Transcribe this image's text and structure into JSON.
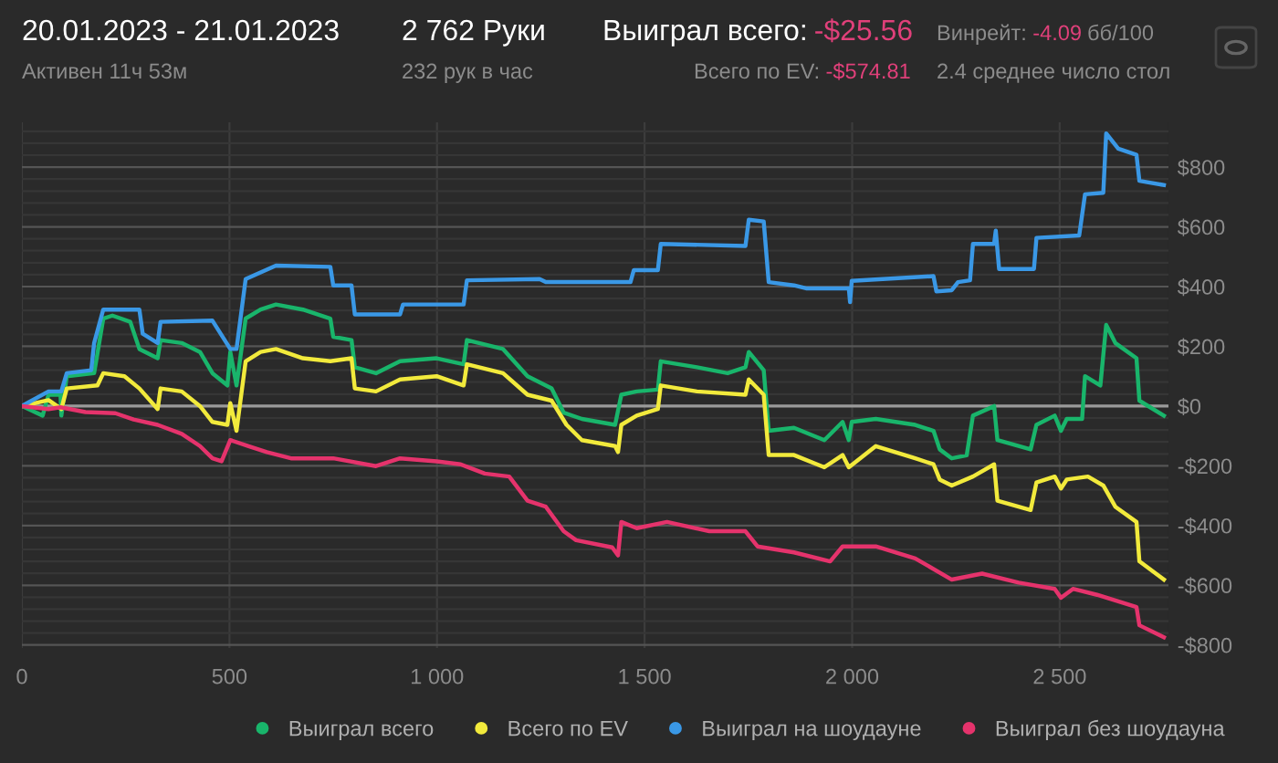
{
  "chart_data": {
    "type": "line",
    "annotations": [
      "20.01.2023 - 21.01.2023",
      "Активен 11ч 53м",
      "2 762 Руки",
      "232 рук в час",
      "Выиграл всего:",
      "-$25.56",
      "Всего по EV:",
      "-$574.81",
      "Винрейт:",
      "-4.09",
      "бб/100",
      "2.4 среднее число стол"
    ],
    "xlim": [
      0,
      2762
    ],
    "ylim": [
      -810,
      950
    ],
    "xticks": [
      0,
      500,
      {
        "value": 1000,
        "label": "1 000"
      },
      {
        "value": 1500,
        "label": "1 500"
      },
      {
        "value": 2000,
        "label": "2 000"
      },
      {
        "value": 2500,
        "label": "2 500"
      }
    ],
    "yticks": [
      {
        "value": -800,
        "label": "-$800"
      },
      {
        "value": -760,
        "label": null
      },
      {
        "value": -720,
        "label": null
      },
      {
        "value": -680,
        "label": null
      },
      {
        "value": -640,
        "label": null
      },
      {
        "value": -600,
        "label": "-$600"
      },
      {
        "value": -560,
        "label": null
      },
      {
        "value": -520,
        "label": null
      },
      {
        "value": -480,
        "label": null
      },
      {
        "value": -440,
        "label": null
      },
      {
        "value": -400,
        "label": "-$400"
      },
      {
        "value": -360,
        "label": null
      },
      {
        "value": -320,
        "label": null
      },
      {
        "value": -280,
        "label": null
      },
      {
        "value": -240,
        "label": null
      },
      {
        "value": -200,
        "label": "-$200"
      },
      {
        "value": -160,
        "label": null
      },
      {
        "value": -120,
        "label": null
      },
      {
        "value": -80,
        "label": null
      },
      {
        "value": -40,
        "label": null
      },
      {
        "value": 0,
        "label": "$0"
      },
      {
        "value": 40,
        "label": null
      },
      {
        "value": 80,
        "label": null
      },
      {
        "value": 120,
        "label": null
      },
      {
        "value": 160,
        "label": null
      },
      {
        "value": 200,
        "label": "$200"
      },
      {
        "value": 240,
        "label": null
      },
      {
        "value": 280,
        "label": null
      },
      {
        "value": 320,
        "label": null
      },
      {
        "value": 360,
        "label": null
      },
      {
        "value": 400,
        "label": "$400"
      },
      {
        "value": 440,
        "label": null
      },
      {
        "value": 480,
        "label": null
      },
      {
        "value": 520,
        "label": null
      },
      {
        "value": 560,
        "label": null
      },
      {
        "value": 600,
        "label": "$600"
      },
      {
        "value": 640,
        "label": null
      },
      {
        "value": 680,
        "label": null
      },
      {
        "value": 720,
        "label": null
      },
      {
        "value": 760,
        "label": null
      },
      {
        "value": 800,
        "label": "$800"
      },
      {
        "value": 840,
        "label": null
      },
      {
        "value": 880,
        "label": null
      },
      {
        "value": 920,
        "label": null
      }
    ],
    "grid": true,
    "legend": "bottom",
    "marker": "none",
    "line_style": "solid",
    "ref_lines": [
      {
        "axis": "y",
        "value": 0,
        "color": "#9a9a9a"
      }
    ],
    "series": [
      {
        "name": "Выиграл всего",
        "color": "#19b56b",
        "x": [
          0,
          50,
          64,
          93,
          95,
          108,
          174,
          196,
          218,
          261,
          283,
          327,
          334,
          385,
          429,
          459,
          495,
          502,
          517,
          539,
          575,
          612,
          677,
          743,
          750,
          794,
          802,
          853,
          911,
          999,
          1064,
          1072,
          1159,
          1218,
          1276,
          1305,
          1349,
          1429,
          1444,
          1481,
          1532,
          1539,
          1626,
          1700,
          1743,
          1751,
          1787,
          1799,
          1860,
          1933,
          1977,
          1992,
          1999,
          2057,
          2152,
          2196,
          2211,
          2240,
          2276,
          2291,
          2342,
          2350,
          2430,
          2444,
          2488,
          2503,
          2517,
          2554,
          2561,
          2598,
          2612,
          2634,
          2685,
          2692,
          2751
        ],
        "values": [
          0,
          -32,
          38,
          38,
          -32,
          100,
          110,
          293,
          303,
          282,
          191,
          160,
          221,
          211,
          181,
          110,
          69,
          181,
          69,
          293,
          323,
          340,
          323,
          293,
          232,
          221,
          130,
          110,
          150,
          160,
          140,
          221,
          191,
          100,
          59,
          -22,
          -43,
          -63,
          38,
          49,
          55,
          150,
          130,
          110,
          130,
          181,
          120,
          -83,
          -73,
          -114,
          -53,
          -114,
          -53,
          -43,
          -63,
          -83,
          -145,
          -175,
          -165,
          -32,
          0,
          -114,
          -145,
          -63,
          -32,
          -83,
          -43,
          -43,
          100,
          69,
          272,
          211,
          160,
          18,
          -32
        ]
      },
      {
        "name": "Всего по EV",
        "color": "#f2ea3c",
        "x": [
          0,
          64,
          95,
          108,
          182,
          196,
          247,
          283,
          327,
          334,
          385,
          429,
          459,
          495,
          502,
          517,
          539,
          575,
          612,
          677,
          743,
          794,
          802,
          853,
          911,
          999,
          1064,
          1072,
          1159,
          1218,
          1276,
          1312,
          1349,
          1429,
          1436,
          1444,
          1481,
          1532,
          1539,
          1626,
          1743,
          1751,
          1787,
          1799,
          1860,
          1933,
          1977,
          1992,
          2057,
          2152,
          2196,
          2211,
          2240,
          2291,
          2342,
          2350,
          2430,
          2444,
          2488,
          2503,
          2517,
          2568,
          2605,
          2634,
          2685,
          2692,
          2751
        ],
        "values": [
          0,
          20,
          -10,
          59,
          69,
          110,
          100,
          59,
          -10,
          59,
          49,
          0,
          -53,
          -63,
          10,
          -83,
          150,
          181,
          191,
          160,
          150,
          160,
          59,
          49,
          89,
          100,
          69,
          140,
          110,
          38,
          18,
          -63,
          -114,
          -134,
          -154,
          -63,
          -32,
          -10,
          69,
          49,
          38,
          89,
          38,
          -164,
          -164,
          -205,
          -164,
          -205,
          -134,
          -175,
          -195,
          -246,
          -266,
          -236,
          -195,
          -317,
          -348,
          -256,
          -236,
          -276,
          -246,
          -236,
          -266,
          -337,
          -388,
          -520,
          -581
        ]
      },
      {
        "name": "Выиграл на шоудауне",
        "color": "#3a98e6",
        "x": [
          0,
          64,
          95,
          108,
          167,
          174,
          196,
          283,
          291,
          327,
          334,
          459,
          502,
          517,
          539,
          612,
          743,
          750,
          794,
          802,
          911,
          918,
          1064,
          1072,
          1247,
          1262,
          1466,
          1474,
          1532,
          1539,
          1743,
          1751,
          1787,
          1799,
          1860,
          1889,
          1992,
          1995,
          1999,
          2196,
          2203,
          2240,
          2255,
          2284,
          2291,
          2342,
          2346,
          2354,
          2438,
          2444,
          2547,
          2561,
          2605,
          2612,
          2641,
          2685,
          2692,
          2751
        ],
        "values": [
          0,
          49,
          49,
          110,
          120,
          211,
          323,
          323,
          242,
          211,
          282,
          286,
          191,
          191,
          425,
          470,
          466,
          404,
          404,
          307,
          307,
          340,
          340,
          421,
          425,
          415,
          415,
          455,
          455,
          543,
          536,
          624,
          618,
          415,
          404,
          394,
          394,
          348,
          419,
          435,
          384,
          388,
          415,
          421,
          543,
          543,
          587,
          459,
          459,
          563,
          571,
          709,
          714,
          913,
          862,
          841,
          754,
          740
        ]
      },
      {
        "name": "Выиграл без шоудауна",
        "color": "#e5336c",
        "x": [
          0,
          64,
          93,
          153,
          225,
          269,
          327,
          385,
          429,
          459,
          481,
          502,
          546,
          590,
          648,
          750,
          853,
          911,
          999,
          1057,
          1115,
          1174,
          1218,
          1262,
          1305,
          1335,
          1422,
          1436,
          1444,
          1481,
          1554,
          1656,
          1743,
          1772,
          1860,
          1947,
          1977,
          2057,
          2152,
          2240,
          2313,
          2401,
          2488,
          2503,
          2532,
          2590,
          2685,
          2692,
          2751
        ],
        "values": [
          0,
          -10,
          -4,
          -20,
          -24,
          -45,
          -63,
          -93,
          -134,
          -175,
          -185,
          -114,
          -134,
          -154,
          -175,
          -175,
          -201,
          -175,
          -185,
          -195,
          -226,
          -236,
          -317,
          -337,
          -419,
          -449,
          -473,
          -500,
          -388,
          -409,
          -388,
          -419,
          -419,
          -470,
          -490,
          -520,
          -470,
          -470,
          -510,
          -581,
          -561,
          -591,
          -612,
          -642,
          -612,
          -632,
          -673,
          -734,
          -774
        ]
      }
    ]
  }
}
